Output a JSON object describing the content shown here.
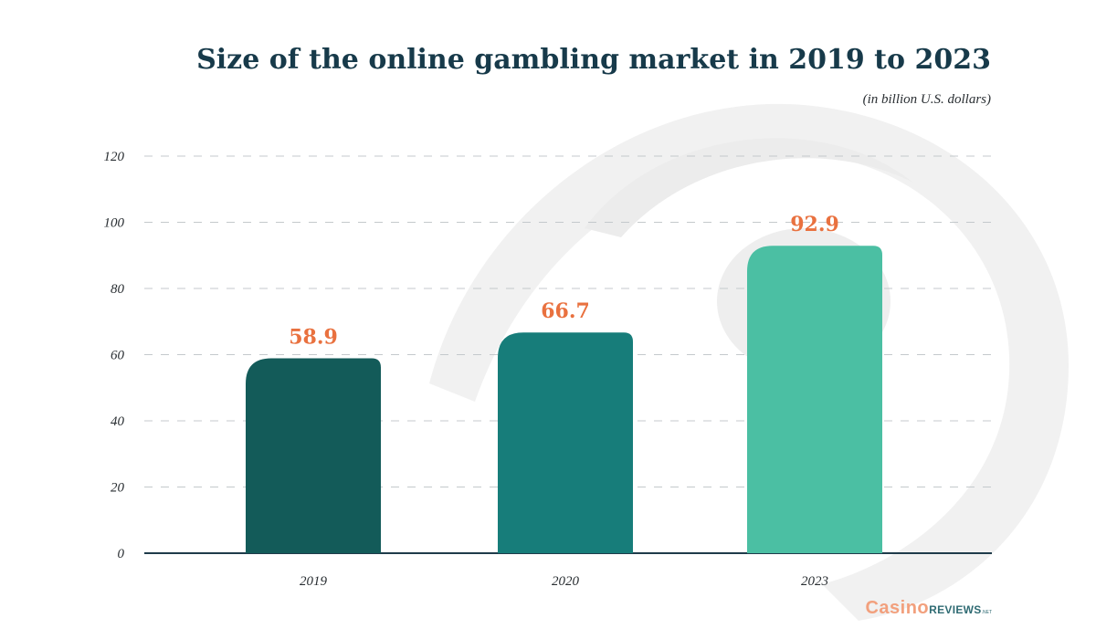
{
  "title": "Size of the online gambling market in 2019 to 2023",
  "subtitle": "(in billion U.S. dollars)",
  "colors": {
    "title": "#173a4a",
    "value_label": "#e9713f",
    "axis": "#1f3b4a",
    "grid": "#c4c9cc"
  },
  "chart_data": {
    "type": "bar",
    "categories": [
      "2019",
      "2020",
      "2023"
    ],
    "values": [
      58.9,
      66.7,
      92.9
    ],
    "value_labels": [
      "58.9",
      "66.7",
      "92.9"
    ],
    "bar_colors": [
      "#135b59",
      "#177d7a",
      "#4bbfa3"
    ],
    "yticks": [
      0,
      20,
      40,
      60,
      80,
      100,
      120
    ],
    "ylim": [
      0,
      120
    ],
    "xlabel": "",
    "ylabel": "",
    "grid": true,
    "grid_style": "dashed",
    "legend": "none"
  },
  "brand": {
    "name_part1": "Casino",
    "name_part2": "REVIEWS",
    "name_suffix": ".NET"
  }
}
